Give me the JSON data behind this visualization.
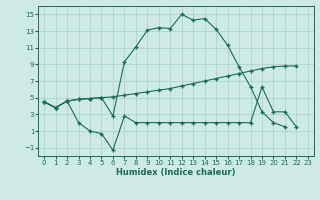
{
  "line1_x": [
    0,
    1,
    2,
    3,
    4,
    5,
    6,
    7,
    8,
    9,
    10,
    11,
    12,
    13,
    14,
    15,
    16,
    17,
    18,
    19,
    20,
    21
  ],
  "line1_y": [
    4.5,
    3.8,
    4.6,
    4.8,
    4.9,
    5.0,
    2.8,
    9.3,
    11.1,
    13.1,
    13.4,
    13.3,
    15.0,
    14.3,
    14.5,
    13.2,
    11.3,
    8.7,
    6.3,
    3.3,
    2.0,
    1.5
  ],
  "line2_x": [
    0,
    1,
    2,
    3,
    4,
    5,
    6,
    7,
    8,
    9,
    10,
    11,
    12,
    13,
    14,
    15,
    16,
    17,
    18,
    19,
    20,
    21,
    22
  ],
  "line2_y": [
    4.5,
    3.8,
    4.6,
    4.8,
    4.9,
    5.0,
    5.1,
    5.3,
    5.5,
    5.7,
    5.9,
    6.1,
    6.4,
    6.7,
    7.0,
    7.3,
    7.6,
    7.9,
    8.2,
    8.5,
    8.7,
    8.8,
    8.8
  ],
  "line3_x": [
    0,
    1,
    2,
    3,
    4,
    5,
    6,
    7,
    8,
    9,
    10,
    11,
    12,
    13,
    14,
    15,
    16,
    17,
    18,
    19,
    20,
    21,
    22
  ],
  "line3_y": [
    4.5,
    3.8,
    4.6,
    2.0,
    1.0,
    0.7,
    -1.3,
    2.8,
    2.0,
    2.0,
    2.0,
    2.0,
    2.0,
    2.0,
    2.0,
    2.0,
    2.0,
    2.0,
    2.0,
    6.3,
    3.3,
    3.3,
    1.5
  ],
  "line_color": "#1a6b5a",
  "bg_color": "#ceeae6",
  "grid_color": "#aacfcb",
  "xlabel": "Humidex (Indice chaleur)",
  "xlim": [
    -0.5,
    23.5
  ],
  "ylim": [
    -2.0,
    16.0
  ],
  "yticks": [
    -1,
    1,
    3,
    5,
    7,
    9,
    11,
    13,
    15
  ],
  "xticks": [
    0,
    1,
    2,
    3,
    4,
    5,
    6,
    7,
    8,
    9,
    10,
    11,
    12,
    13,
    14,
    15,
    16,
    17,
    18,
    19,
    20,
    21,
    22,
    23
  ]
}
